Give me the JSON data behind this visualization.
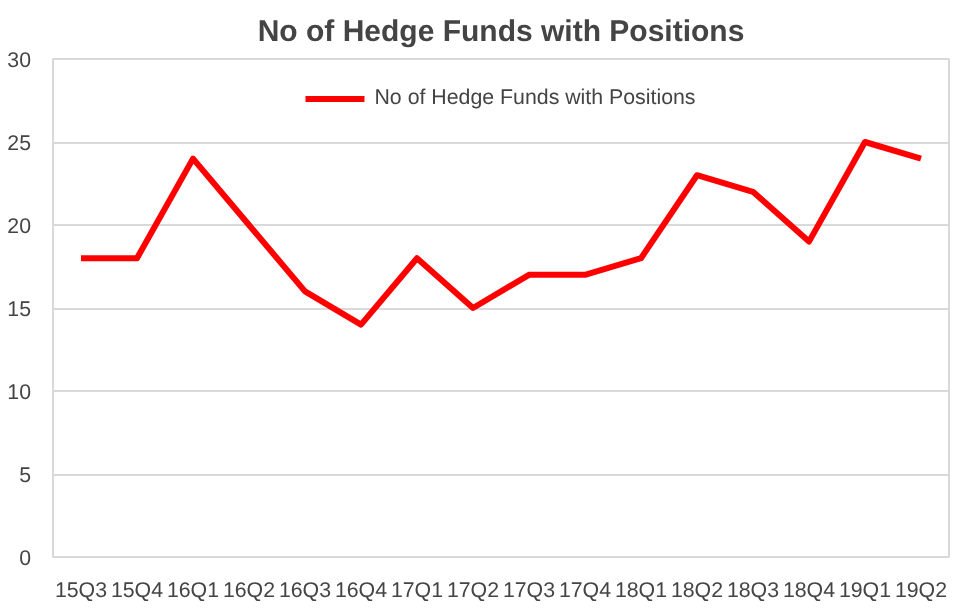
{
  "chart_data": {
    "type": "line",
    "title": "No of Hedge Funds with Positions",
    "categories": [
      "15Q3",
      "15Q4",
      "16Q1",
      "16Q2",
      "16Q3",
      "16Q4",
      "17Q1",
      "17Q2",
      "17Q3",
      "17Q4",
      "18Q1",
      "18Q2",
      "18Q3",
      "18Q4",
      "19Q1",
      "19Q2"
    ],
    "series": [
      {
        "name": "No of Hedge Funds with Positions",
        "color": "#ff0000",
        "values": [
          18,
          18,
          24,
          20,
          16,
          14,
          18,
          15,
          17,
          17,
          18,
          23,
          22,
          19,
          25,
          24
        ]
      }
    ],
    "ylim": [
      0,
      30
    ],
    "yticks": [
      0,
      5,
      10,
      15,
      20,
      25,
      30
    ],
    "grid": "y",
    "legend": "top",
    "marker": "none",
    "line_style": "solid"
  }
}
